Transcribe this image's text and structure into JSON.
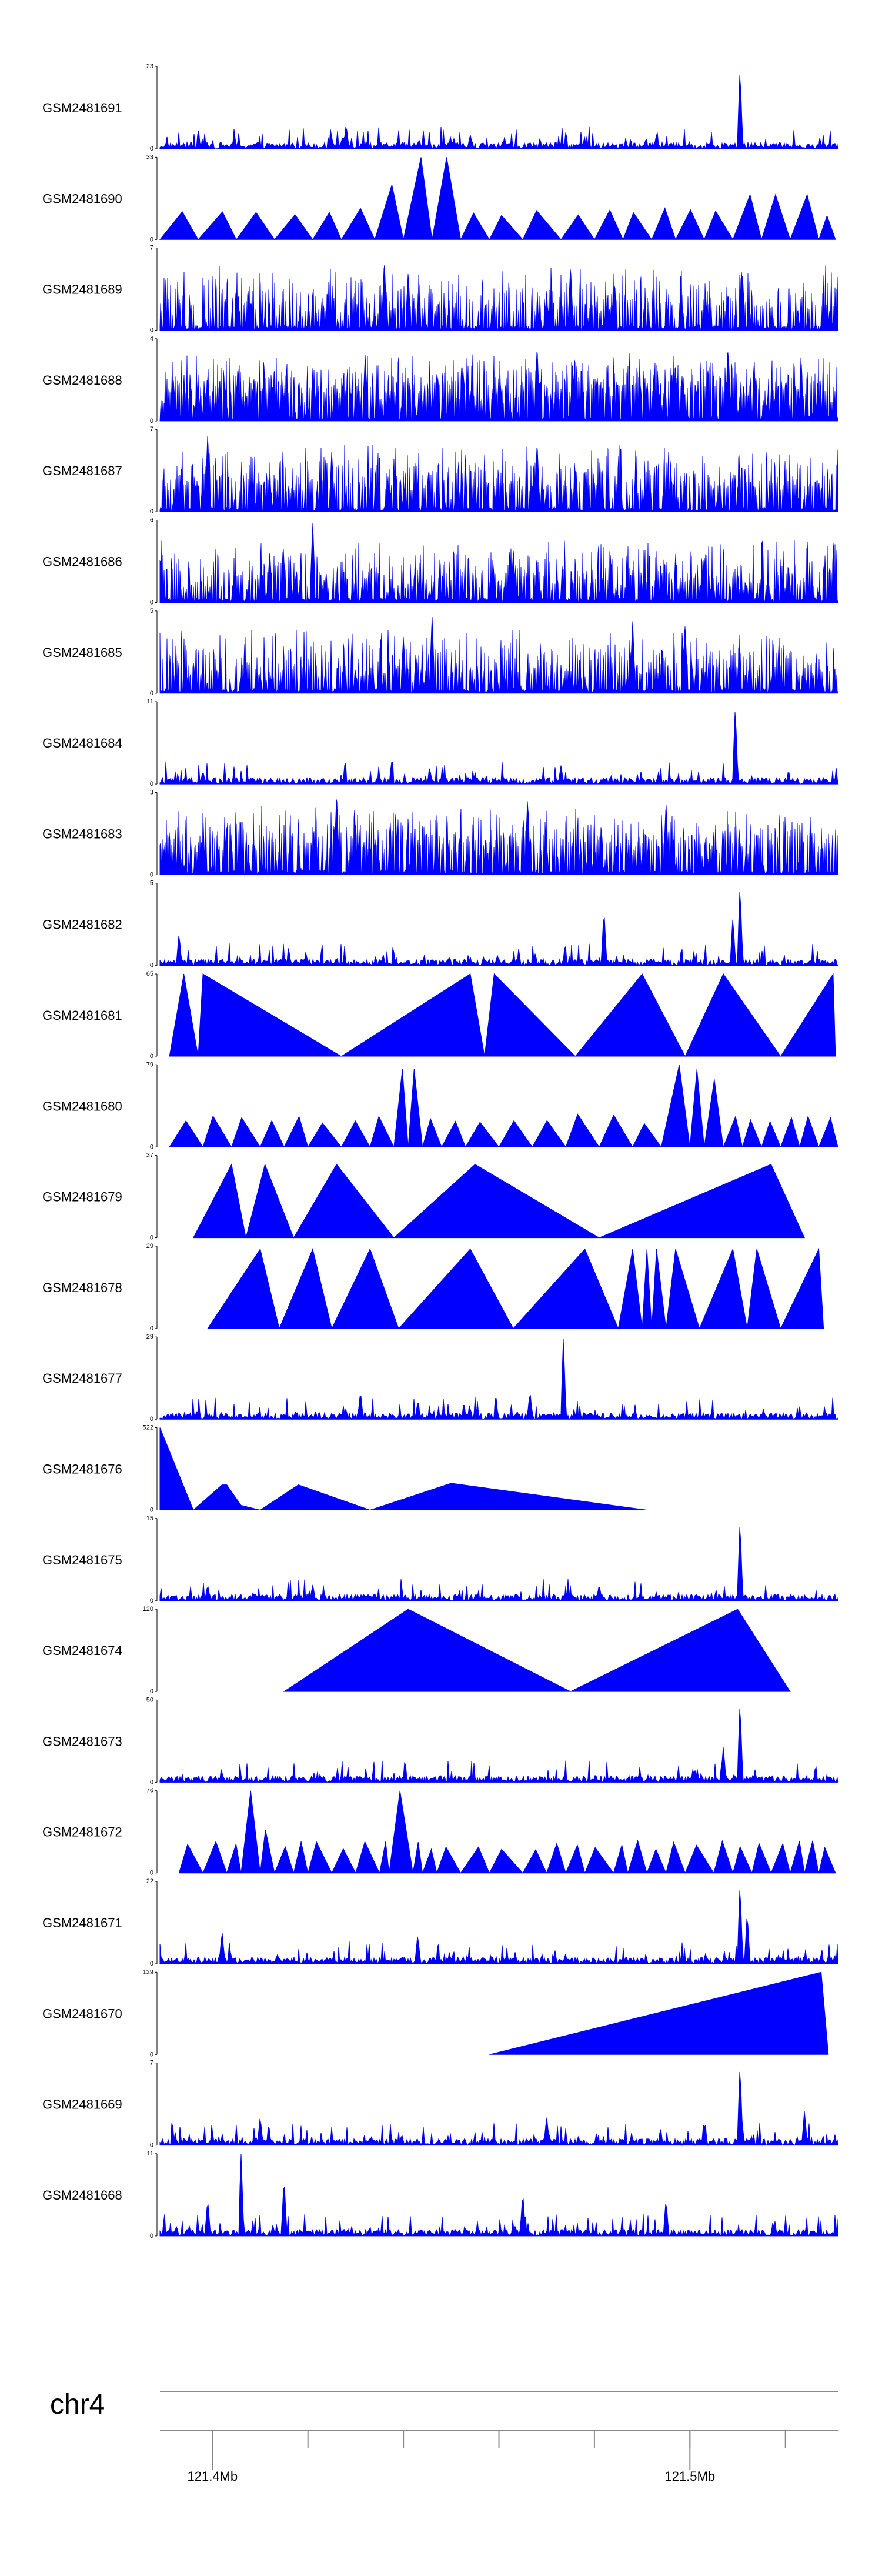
{
  "chart_data": {
    "type": "area",
    "title": "",
    "fill_color": "#0000ff",
    "axis_color": "#000000",
    "genome_axis": {
      "chromosome": "chr4",
      "range_mb": [
        121.389,
        121.531
      ],
      "major_ticks": [
        {
          "mb": 121.4,
          "label": "121.4Mb"
        },
        {
          "mb": 121.5,
          "label": "121.5Mb"
        }
      ],
      "minor_ticks_mb": [
        121.4,
        121.42,
        121.44,
        121.46,
        121.48,
        121.5,
        121.52
      ]
    },
    "series": [
      {
        "name": "GSM2481691",
        "ymax": 23,
        "ymax_label": "23",
        "ymin_label": "0",
        "style": "dense",
        "peaks": [
          [
            121.5105,
            23
          ],
          [
            121.428,
            7
          ],
          [
            121.454,
            4
          ],
          [
            121.493,
            4
          ]
        ]
      },
      {
        "name": "GSM2481690",
        "ymax": 33,
        "ymax_label": "33",
        "ymin_label": "0",
        "style": "triangles",
        "tri_breaks": [
          121.389,
          121.397,
          121.405,
          121.413,
          121.421,
          121.427,
          121.434,
          121.44,
          121.446,
          121.452,
          121.458,
          121.465,
          121.473,
          121.48,
          121.486,
          121.492,
          121.497,
          121.503,
          121.509,
          121.515,
          121.521,
          121.527,
          121.5305
        ],
        "peaks": [
          [
            121.446,
            33
          ],
          [
            121.44,
            22
          ],
          [
            121.512,
            18
          ],
          [
            121.521,
            18
          ]
        ]
      },
      {
        "name": "GSM2481689",
        "ymax": 7,
        "ymax_label": "7",
        "ymin_label": "0",
        "style": "bars",
        "density": 0.45,
        "base": 0.25,
        "peaks": [
          [
            121.436,
            6
          ],
          [
            121.475,
            5.5
          ],
          [
            121.441,
            5
          ],
          [
            121.511,
            5
          ]
        ]
      },
      {
        "name": "GSM2481688",
        "ymax": 4,
        "ymax_label": "4",
        "ymin_label": "0",
        "style": "bars",
        "density": 0.7,
        "base": 0.35,
        "peaks": [
          [
            121.468,
            3.7
          ],
          [
            121.508,
            3.5
          ],
          [
            121.432,
            3.3
          ]
        ]
      },
      {
        "name": "GSM2481687",
        "ymax": 7,
        "ymax_label": "7",
        "ymin_label": "0",
        "style": "bars",
        "density": 0.55,
        "base": 0.3,
        "peaks": [
          [
            121.399,
            6.7
          ],
          [
            121.468,
            6
          ],
          [
            121.425,
            5
          ]
        ]
      },
      {
        "name": "GSM2481686",
        "ymax": 6,
        "ymax_label": "6",
        "ymin_label": "0",
        "style": "bars",
        "density": 0.5,
        "base": 0.2,
        "peaks": [
          [
            121.421,
            6
          ],
          [
            121.412,
            3.8
          ],
          [
            121.463,
            3.6
          ],
          [
            121.503,
            3.5
          ]
        ]
      },
      {
        "name": "GSM2481685",
        "ymax": 5,
        "ymax_label": "5",
        "ymin_label": "0",
        "style": "bars",
        "density": 0.5,
        "base": 0.2,
        "peaks": [
          [
            121.446,
            4.8
          ],
          [
            121.488,
            4.5
          ],
          [
            121.499,
            4.2
          ],
          [
            121.44,
            3.5
          ]
        ]
      },
      {
        "name": "GSM2481684",
        "ymax": 11,
        "ymax_label": "11",
        "ymin_label": "0",
        "style": "dense",
        "peaks": [
          [
            121.5095,
            10.5
          ],
          [
            121.473,
            2.5
          ],
          [
            121.398,
            1.8
          ]
        ]
      },
      {
        "name": "GSM2481683",
        "ymax": 3,
        "ymax_label": "3",
        "ymin_label": "0",
        "style": "bars",
        "density": 0.55,
        "base": 0.35,
        "peaks": [
          [
            121.426,
            3
          ],
          [
            121.466,
            2.8
          ],
          [
            121.495,
            2.7
          ]
        ]
      },
      {
        "name": "GSM2481682",
        "ymax": 5,
        "ymax_label": "5",
        "ymin_label": "0",
        "style": "dense",
        "peaks": [
          [
            121.5105,
            5
          ],
          [
            121.482,
            3.5
          ],
          [
            121.509,
            3.0
          ],
          [
            121.393,
            2.0
          ]
        ]
      },
      {
        "name": "GSM2481681",
        "ymax": 65,
        "ymax_label": "65",
        "ymin_label": "0",
        "style": "piecewise",
        "points": [
          [
            121.391,
            0
          ],
          [
            121.394,
            65
          ],
          [
            121.397,
            0
          ],
          [
            121.398,
            65
          ],
          [
            121.427,
            0
          ],
          [
            121.454,
            65
          ],
          [
            121.457,
            0
          ],
          [
            121.459,
            65
          ],
          [
            121.476,
            0
          ],
          [
            121.49,
            65
          ],
          [
            121.499,
            0
          ],
          [
            121.507,
            65
          ],
          [
            121.519,
            0
          ],
          [
            121.53,
            65
          ],
          [
            121.5305,
            0
          ]
        ]
      },
      {
        "name": "GSM2481680",
        "ymax": 79,
        "ymax_label": "79",
        "ymin_label": "0",
        "style": "triangles",
        "tri_breaks": [
          121.391,
          121.398,
          121.404,
          121.41,
          121.415,
          121.42,
          121.427,
          121.433,
          121.438,
          121.441,
          121.444,
          121.448,
          121.453,
          121.46,
          121.467,
          121.474,
          121.481,
          121.488,
          121.494,
          121.5,
          121.503,
          121.507,
          121.511,
          121.515,
          121.519,
          121.523,
          121.527,
          121.531
        ],
        "peaks": [
          [
            121.495,
            79
          ],
          [
            121.5,
            75
          ],
          [
            121.441,
            75
          ],
          [
            121.506,
            65
          ]
        ]
      },
      {
        "name": "GSM2481679",
        "ymax": 37,
        "ymax_label": "37",
        "ymin_label": "0",
        "style": "piecewise",
        "points": [
          [
            121.396,
            0
          ],
          [
            121.404,
            33
          ],
          [
            121.407,
            0
          ],
          [
            121.411,
            33
          ],
          [
            121.417,
            0
          ],
          [
            121.426,
            33
          ],
          [
            121.438,
            0
          ],
          [
            121.455,
            33
          ],
          [
            121.481,
            0
          ],
          [
            121.517,
            33
          ],
          [
            121.524,
            0
          ]
        ]
      },
      {
        "name": "GSM2481678",
        "ymax": 29,
        "ymax_label": "29",
        "ymin_label": "0",
        "style": "piecewise",
        "points": [
          [
            121.399,
            0
          ],
          [
            121.41,
            28
          ],
          [
            121.414,
            0
          ],
          [
            121.421,
            28
          ],
          [
            121.425,
            0
          ],
          [
            121.433,
            28
          ],
          [
            121.439,
            0
          ],
          [
            121.454,
            28
          ],
          [
            121.463,
            0
          ],
          [
            121.478,
            28
          ],
          [
            121.485,
            0
          ],
          [
            121.488,
            28
          ],
          [
            121.49,
            0
          ],
          [
            121.491,
            28
          ],
          [
            121.492,
            0
          ],
          [
            121.493,
            28
          ],
          [
            121.495,
            0
          ],
          [
            121.497,
            28
          ],
          [
            121.502,
            0
          ],
          [
            121.509,
            28
          ],
          [
            121.512,
            0
          ],
          [
            121.514,
            28
          ],
          [
            121.519,
            0
          ],
          [
            121.527,
            28
          ],
          [
            121.528,
            0
          ]
        ]
      },
      {
        "name": "GSM2481677",
        "ymax": 29,
        "ymax_label": "29",
        "ymin_label": "0",
        "style": "dense",
        "peaks": [
          [
            121.4735,
            29
          ],
          [
            121.4665,
            10
          ],
          [
            121.431,
            10
          ],
          [
            121.443,
            6
          ]
        ]
      },
      {
        "name": "GSM2481676",
        "ymax": 522,
        "ymax_label": "522",
        "ymin_label": "0",
        "style": "piecewise",
        "points": [
          [
            121.389,
            522
          ],
          [
            121.396,
            0
          ],
          [
            121.402,
            160
          ],
          [
            121.403,
            160
          ],
          [
            121.406,
            30
          ],
          [
            121.41,
            0
          ],
          [
            121.418,
            160
          ],
          [
            121.433,
            0
          ],
          [
            121.45,
            170
          ],
          [
            121.491,
            0
          ]
        ]
      },
      {
        "name": "GSM2481675",
        "ymax": 15,
        "ymax_label": "15",
        "ymin_label": "0",
        "style": "dense",
        "peaks": [
          [
            121.5105,
            15
          ],
          [
            121.399,
            3
          ],
          [
            121.421,
            3
          ],
          [
            121.481,
            3
          ]
        ]
      },
      {
        "name": "GSM2481674",
        "ymax": 120,
        "ymax_label": "120",
        "ymin_label": "0",
        "style": "piecewise",
        "points": [
          [
            121.415,
            0
          ],
          [
            121.441,
            120
          ],
          [
            121.475,
            0
          ],
          [
            121.51,
            120
          ],
          [
            121.521,
            0
          ]
        ]
      },
      {
        "name": "GSM2481673",
        "ymax": 50,
        "ymax_label": "50",
        "ymin_label": "0",
        "style": "dense",
        "peaks": [
          [
            121.5105,
            50
          ],
          [
            121.507,
            22
          ],
          [
            121.501,
            8
          ],
          [
            121.402,
            6
          ]
        ]
      },
      {
        "name": "GSM2481672",
        "ymax": 76,
        "ymax_label": "76",
        "ymin_label": "0",
        "style": "triangles",
        "tri_breaks": [
          121.393,
          121.398,
          121.403,
          121.406,
          121.41,
          121.413,
          121.417,
          121.42,
          121.425,
          121.43,
          121.435,
          121.437,
          121.442,
          121.444,
          121.447,
          121.452,
          121.458,
          121.465,
          121.47,
          121.474,
          121.478,
          121.484,
          121.487,
          121.491,
          121.495,
          121.499,
          121.505,
          121.509,
          121.513,
          121.517,
          121.521,
          121.524,
          121.527,
          121.5305
        ],
        "peaks": [
          [
            121.408,
            76
          ],
          [
            121.441,
            76
          ],
          [
            121.41,
            40
          ]
        ]
      },
      {
        "name": "GSM2481671",
        "ymax": 22,
        "ymax_label": "22",
        "ymin_label": "0",
        "style": "dense",
        "peaks": [
          [
            121.5105,
            22
          ],
          [
            121.512,
            14
          ],
          [
            121.402,
            9
          ],
          [
            121.443,
            8
          ]
        ]
      },
      {
        "name": "GSM2481670",
        "ymax": 129,
        "ymax_label": "129",
        "ymin_label": "0",
        "style": "piecewise",
        "points": [
          [
            121.458,
            0
          ],
          [
            121.5275,
            129
          ],
          [
            121.529,
            0
          ]
        ]
      },
      {
        "name": "GSM2481669",
        "ymax": 7,
        "ymax_label": "7",
        "ymin_label": "0",
        "style": "dense",
        "peaks": [
          [
            121.5105,
            7
          ],
          [
            121.524,
            3
          ],
          [
            121.47,
            2.5
          ],
          [
            121.41,
            2.5
          ]
        ]
      },
      {
        "name": "GSM2481668",
        "ymax": 11,
        "ymax_label": "11",
        "ymin_label": "0",
        "style": "dense",
        "peaks": [
          [
            121.406,
            11
          ],
          [
            121.415,
            8
          ],
          [
            121.399,
            5
          ],
          [
            121.465,
            6
          ],
          [
            121.495,
            5
          ]
        ]
      }
    ]
  }
}
